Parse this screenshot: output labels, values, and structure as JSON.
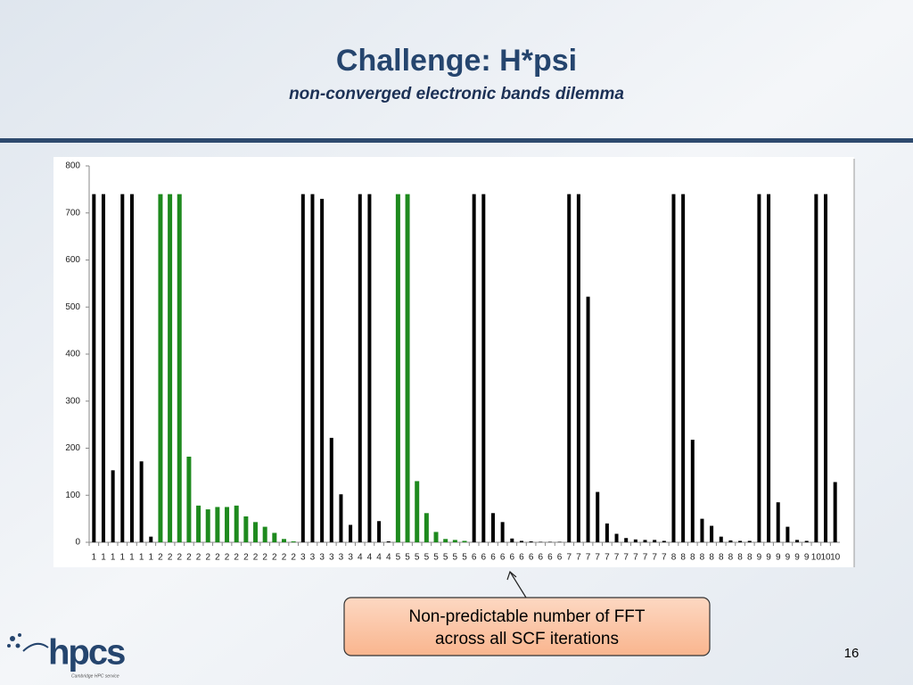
{
  "title": "Challenge: H*psi",
  "subtitle": "non-converged electronic bands dilemma",
  "callout": [
    "Non-predictable number of FFT",
    "across all SCF iterations"
  ],
  "page_number": "16",
  "logo": "hpcs",
  "logo_tagline": "Cambridge HPC service",
  "chart_data": {
    "type": "bar",
    "categories": [
      "1",
      "1",
      "1",
      "1",
      "1",
      "1",
      "1",
      "2",
      "2",
      "2",
      "2",
      "2",
      "2",
      "2",
      "2",
      "2",
      "2",
      "2",
      "2",
      "2",
      "2",
      "2",
      "3",
      "3",
      "3",
      "3",
      "3",
      "3",
      "4",
      "4",
      "4",
      "4",
      "5",
      "5",
      "5",
      "5",
      "5",
      "5",
      "5",
      "5",
      "6",
      "6",
      "6",
      "6",
      "6",
      "6",
      "6",
      "6",
      "6",
      "6",
      "7",
      "7",
      "7",
      "7",
      "7",
      "7",
      "7",
      "7",
      "7",
      "7",
      "7",
      "8",
      "8",
      "8",
      "8",
      "8",
      "8",
      "8",
      "8",
      "8",
      "9",
      "9",
      "9",
      "9",
      "9",
      "9",
      "10",
      "10",
      "10"
    ],
    "values": [
      740,
      740,
      153,
      740,
      740,
      172,
      12,
      740,
      740,
      740,
      182,
      78,
      70,
      75,
      75,
      78,
      55,
      43,
      33,
      20,
      7,
      2,
      740,
      740,
      730,
      222,
      102,
      37,
      740,
      740,
      45,
      2,
      740,
      740,
      130,
      62,
      22,
      7,
      5,
      3,
      740,
      740,
      62,
      43,
      8,
      3,
      2,
      1,
      1,
      1,
      740,
      740,
      522,
      107,
      40,
      18,
      9,
      6,
      5,
      5,
      3,
      740,
      740,
      218,
      50,
      35,
      12,
      4,
      3,
      3,
      740,
      740,
      85,
      33,
      5,
      3,
      740,
      740,
      128
    ],
    "color": "#000000",
    "highlight_categories": [
      "2",
      "5"
    ],
    "highlight_color": "#1e8a1e",
    "ylim": [
      0,
      800
    ],
    "yticks": [
      0,
      100,
      200,
      300,
      400,
      500,
      600,
      700,
      800
    ],
    "grid": false
  }
}
